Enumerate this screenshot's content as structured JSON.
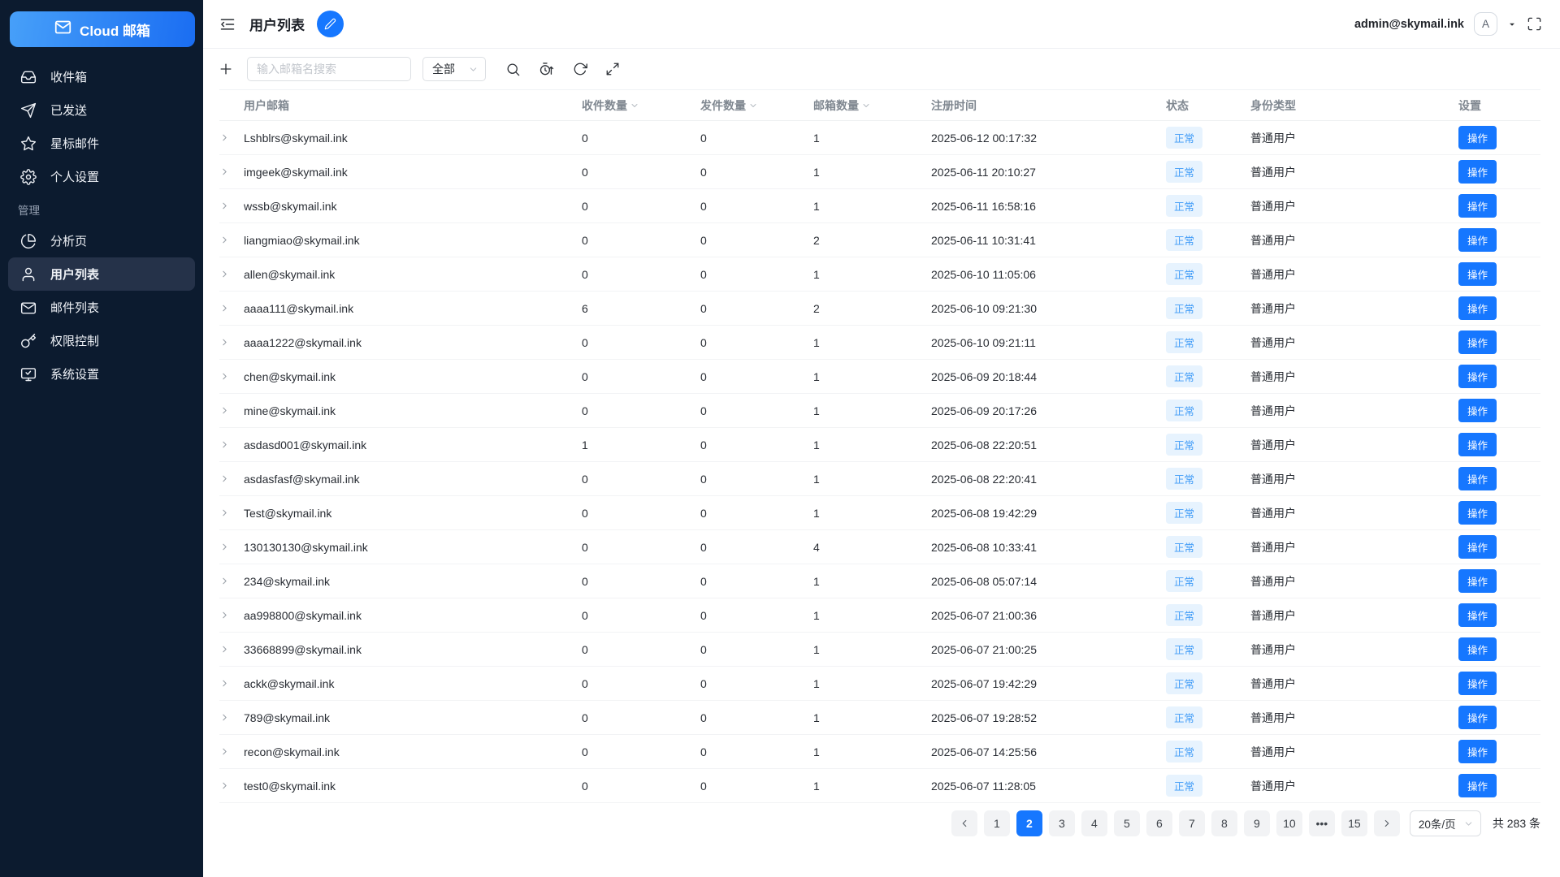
{
  "app": {
    "logo_label": "Cloud 邮箱"
  },
  "sidebar": {
    "section_label": "管理",
    "main_items": [
      {
        "id": "inbox",
        "icon": "inbox-icon",
        "label": "收件箱"
      },
      {
        "id": "sent",
        "icon": "send-icon",
        "label": "已发送"
      },
      {
        "id": "starred",
        "icon": "star-icon",
        "label": "星标邮件"
      },
      {
        "id": "personal-settings",
        "icon": "gear-icon",
        "label": "个人设置"
      }
    ],
    "admin_items": [
      {
        "id": "analytics",
        "icon": "pie-chart-icon",
        "label": "分析页"
      },
      {
        "id": "user-list",
        "icon": "user-icon",
        "label": "用户列表",
        "active": true
      },
      {
        "id": "mail-list",
        "icon": "mail-list-icon",
        "label": "邮件列表"
      },
      {
        "id": "permission-control",
        "icon": "key-icon",
        "label": "权限控制"
      },
      {
        "id": "system-settings",
        "icon": "monitor-check-icon",
        "label": "系统设置"
      }
    ]
  },
  "header": {
    "title": "用户列表",
    "account_email": "admin@skymail.ink",
    "avatar_letter": "A"
  },
  "toolbar": {
    "search_placeholder": "输入邮箱名搜索",
    "filter_value": "全部"
  },
  "table": {
    "columns": [
      {
        "id": "user-email",
        "label": "用户邮箱",
        "sortable": false
      },
      {
        "id": "recv-count",
        "label": "收件数量",
        "sortable": true
      },
      {
        "id": "sent-count",
        "label": "发件数量",
        "sortable": true
      },
      {
        "id": "mailbox-count",
        "label": "邮箱数量",
        "sortable": true
      },
      {
        "id": "reg-time",
        "label": "注册时间",
        "sortable": false
      },
      {
        "id": "status",
        "label": "状态",
        "sortable": false
      },
      {
        "id": "identity-type",
        "label": "身份类型",
        "sortable": false
      },
      {
        "id": "settings",
        "label": "设置",
        "sortable": false
      }
    ],
    "status_label": "正常",
    "role_label": "普通用户",
    "action_label": "操作",
    "rows": [
      {
        "email": "Lshblrs@skymail.ink",
        "recv": "0",
        "sent": "0",
        "mailboxes": "1",
        "reg_time": "2025-06-12 00:17:32"
      },
      {
        "email": "imgeek@skymail.ink",
        "recv": "0",
        "sent": "0",
        "mailboxes": "1",
        "reg_time": "2025-06-11 20:10:27"
      },
      {
        "email": "wssb@skymail.ink",
        "recv": "0",
        "sent": "0",
        "mailboxes": "1",
        "reg_time": "2025-06-11 16:58:16"
      },
      {
        "email": "liangmiao@skymail.ink",
        "recv": "0",
        "sent": "0",
        "mailboxes": "2",
        "reg_time": "2025-06-11 10:31:41"
      },
      {
        "email": "allen@skymail.ink",
        "recv": "0",
        "sent": "0",
        "mailboxes": "1",
        "reg_time": "2025-06-10 11:05:06"
      },
      {
        "email": "aaaa111@skymail.ink",
        "recv": "6",
        "sent": "0",
        "mailboxes": "2",
        "reg_time": "2025-06-10 09:21:30"
      },
      {
        "email": "aaaa1222@skymail.ink",
        "recv": "0",
        "sent": "0",
        "mailboxes": "1",
        "reg_time": "2025-06-10 09:21:11"
      },
      {
        "email": "chen@skymail.ink",
        "recv": "0",
        "sent": "0",
        "mailboxes": "1",
        "reg_time": "2025-06-09 20:18:44"
      },
      {
        "email": "mine@skymail.ink",
        "recv": "0",
        "sent": "0",
        "mailboxes": "1",
        "reg_time": "2025-06-09 20:17:26"
      },
      {
        "email": "asdasd001@skymail.ink",
        "recv": "1",
        "sent": "0",
        "mailboxes": "1",
        "reg_time": "2025-06-08 22:20:51"
      },
      {
        "email": "asdasfasf@skymail.ink",
        "recv": "0",
        "sent": "0",
        "mailboxes": "1",
        "reg_time": "2025-06-08 22:20:41"
      },
      {
        "email": "Test@skymail.ink",
        "recv": "0",
        "sent": "0",
        "mailboxes": "1",
        "reg_time": "2025-06-08 19:42:29"
      },
      {
        "email": "130130130@skymail.ink",
        "recv": "0",
        "sent": "0",
        "mailboxes": "4",
        "reg_time": "2025-06-08 10:33:41"
      },
      {
        "email": "234@skymail.ink",
        "recv": "0",
        "sent": "0",
        "mailboxes": "1",
        "reg_time": "2025-06-08 05:07:14"
      },
      {
        "email": "aa998800@skymail.ink",
        "recv": "0",
        "sent": "0",
        "mailboxes": "1",
        "reg_time": "2025-06-07 21:00:36"
      },
      {
        "email": "33668899@skymail.ink",
        "recv": "0",
        "sent": "0",
        "mailboxes": "1",
        "reg_time": "2025-06-07 21:00:25"
      },
      {
        "email": "ackk@skymail.ink",
        "recv": "0",
        "sent": "0",
        "mailboxes": "1",
        "reg_time": "2025-06-07 19:42:29"
      },
      {
        "email": "789@skymail.ink",
        "recv": "0",
        "sent": "0",
        "mailboxes": "1",
        "reg_time": "2025-06-07 19:28:52"
      },
      {
        "email": "recon@skymail.ink",
        "recv": "0",
        "sent": "0",
        "mailboxes": "1",
        "reg_time": "2025-06-07 14:25:56"
      },
      {
        "email": "test0@skymail.ink",
        "recv": "0",
        "sent": "0",
        "mailboxes": "1",
        "reg_time": "2025-06-07 11:28:05"
      }
    ]
  },
  "pagination": {
    "pages": [
      "1",
      "2",
      "3",
      "4",
      "5",
      "6",
      "7",
      "8",
      "9",
      "10",
      "•••",
      "15"
    ],
    "active_page": "2",
    "page_size_label": "20条/页",
    "total_label": "共 283 条"
  },
  "colors": {
    "accent_blue": "#1677ff",
    "sidebar_bg": "#0c1b2f",
    "badge_bg": "#e7f3fe",
    "badge_text": "#3f9bf7"
  }
}
